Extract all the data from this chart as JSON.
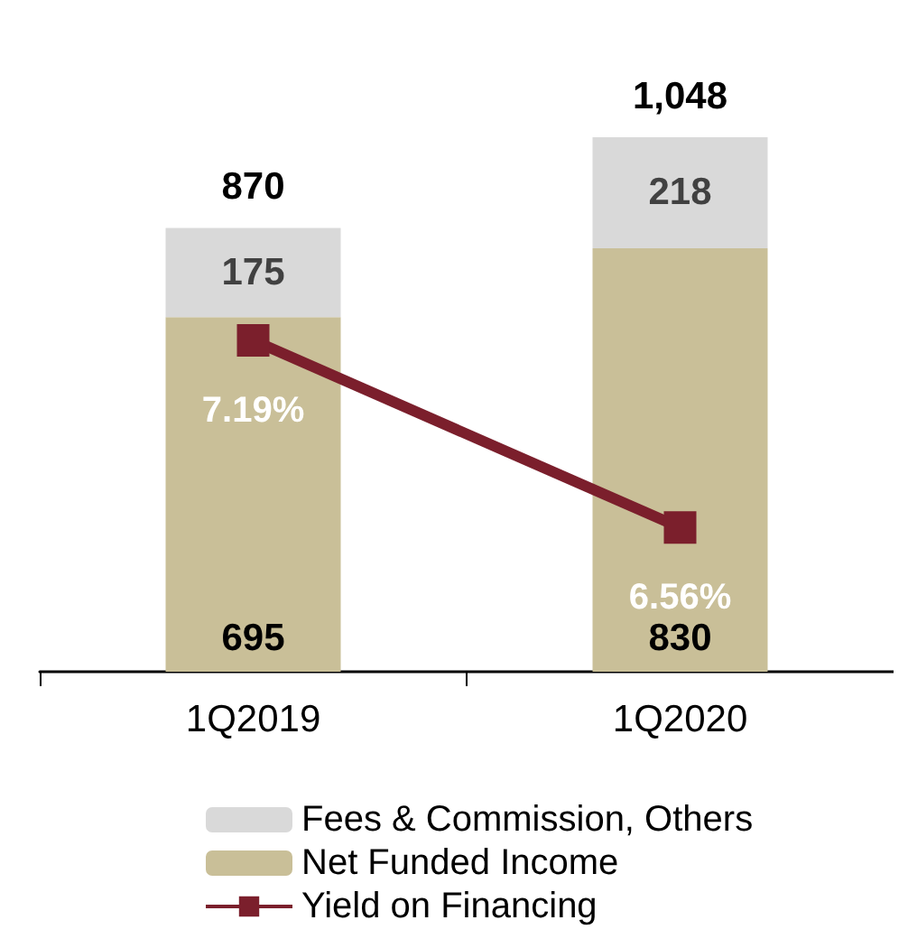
{
  "chart_data": {
    "type": "bar",
    "stacked": true,
    "categories": [
      "1Q2019",
      "1Q2020"
    ],
    "series": [
      {
        "name": "Net Funded Income",
        "color": "#c9bf98",
        "values": [
          695,
          830
        ]
      },
      {
        "name": "Fees & Commission, Others",
        "color": "#d9d9d9",
        "values": [
          175,
          218
        ]
      },
      {
        "name": "Yield on Financing",
        "type": "line",
        "axis": "y2",
        "color": "#7b1f2c",
        "values": [
          7.19,
          6.56
        ],
        "value_labels": [
          "7.19%",
          "6.56%"
        ]
      }
    ],
    "totals": [
      "870",
      "1,048"
    ],
    "data_labels": true,
    "tick_labels": "x",
    "marker": "square",
    "legend": "bottom",
    "grid": false
  }
}
